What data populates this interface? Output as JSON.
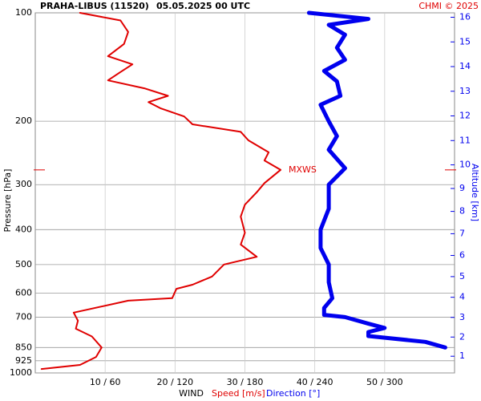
{
  "chart_data": {
    "type": "profile",
    "title": "PRAHA-LIBUS (11520)",
    "subtitle": "05.05.2025 00 UTC",
    "credit": "CHMI © 2025",
    "ylabel": "Pressure [hPa]",
    "y2label": "Altitude [km]",
    "xlabel": "WIND",
    "ylim": [
      100,
      1000
    ],
    "ylog": true,
    "yticks": [
      100,
      200,
      300,
      400,
      500,
      600,
      700,
      850,
      925,
      1000
    ],
    "y2ticks": [
      1,
      2,
      3,
      4,
      5,
      6,
      7,
      8,
      9,
      10,
      11,
      12,
      13,
      14,
      15,
      16
    ],
    "xlim": [
      0,
      60
    ],
    "x2lim": [
      0,
      360
    ],
    "xticks": [
      {
        "value": 10,
        "label": "10 / 60"
      },
      {
        "value": 20,
        "label": "20 / 120"
      },
      {
        "value": 30,
        "label": "30 / 180"
      },
      {
        "value": 40,
        "label": "40 / 240"
      },
      {
        "value": 50,
        "label": "50 / 300"
      }
    ],
    "grid": true,
    "annotation": {
      "text": "MXWS",
      "pressure": 273
    },
    "series": [
      {
        "name": "Speed [m/s]",
        "color": "#e00000",
        "axis": "x",
        "pressure": [
          975,
          950,
          903,
          850,
          792,
          754,
          716,
          680,
          630,
          620,
          584,
          569,
          540,
          500,
          476,
          440,
          408,
          368,
          341,
          315,
          297,
          273,
          257,
          244,
          226,
          214,
          204,
          194,
          184,
          177,
          170,
          162,
          154,
          146,
          139,
          132,
          122,
          113,
          105,
          100
        ],
        "values": [
          0.9,
          6.4,
          8.7,
          9.5,
          8.1,
          5.8,
          6.1,
          5.5,
          13.3,
          19.6,
          20.2,
          22.5,
          25.3,
          27,
          31.7,
          29.4,
          30,
          29.4,
          30,
          31.7,
          32.8,
          35.1,
          32.8,
          33.4,
          30.5,
          29.4,
          22.5,
          21.3,
          17.9,
          16.2,
          19,
          15.6,
          10.4,
          12.2,
          13.9,
          10.4,
          12.7,
          13.3,
          12.2,
          6.4
        ]
      },
      {
        "name": "Direction [°]",
        "color": "#0000ee",
        "axis": "x2",
        "pressure": [
          850,
          820,
          790,
          770,
          750,
          730,
          700,
          690,
          660,
          620,
          560,
          500,
          450,
          400,
          350,
          300,
          270,
          240,
          220,
          200,
          180,
          170,
          155,
          145,
          135,
          125,
          115,
          108,
          104,
          100
        ],
        "values": [
          352,
          335,
          286,
          286,
          300,
          286,
          266,
          248,
          248,
          255,
          252,
          252,
          245,
          245,
          252,
          252,
          266,
          252,
          259,
          252,
          245,
          262,
          259,
          248,
          266,
          259,
          266,
          252,
          286,
          235
        ]
      }
    ]
  }
}
